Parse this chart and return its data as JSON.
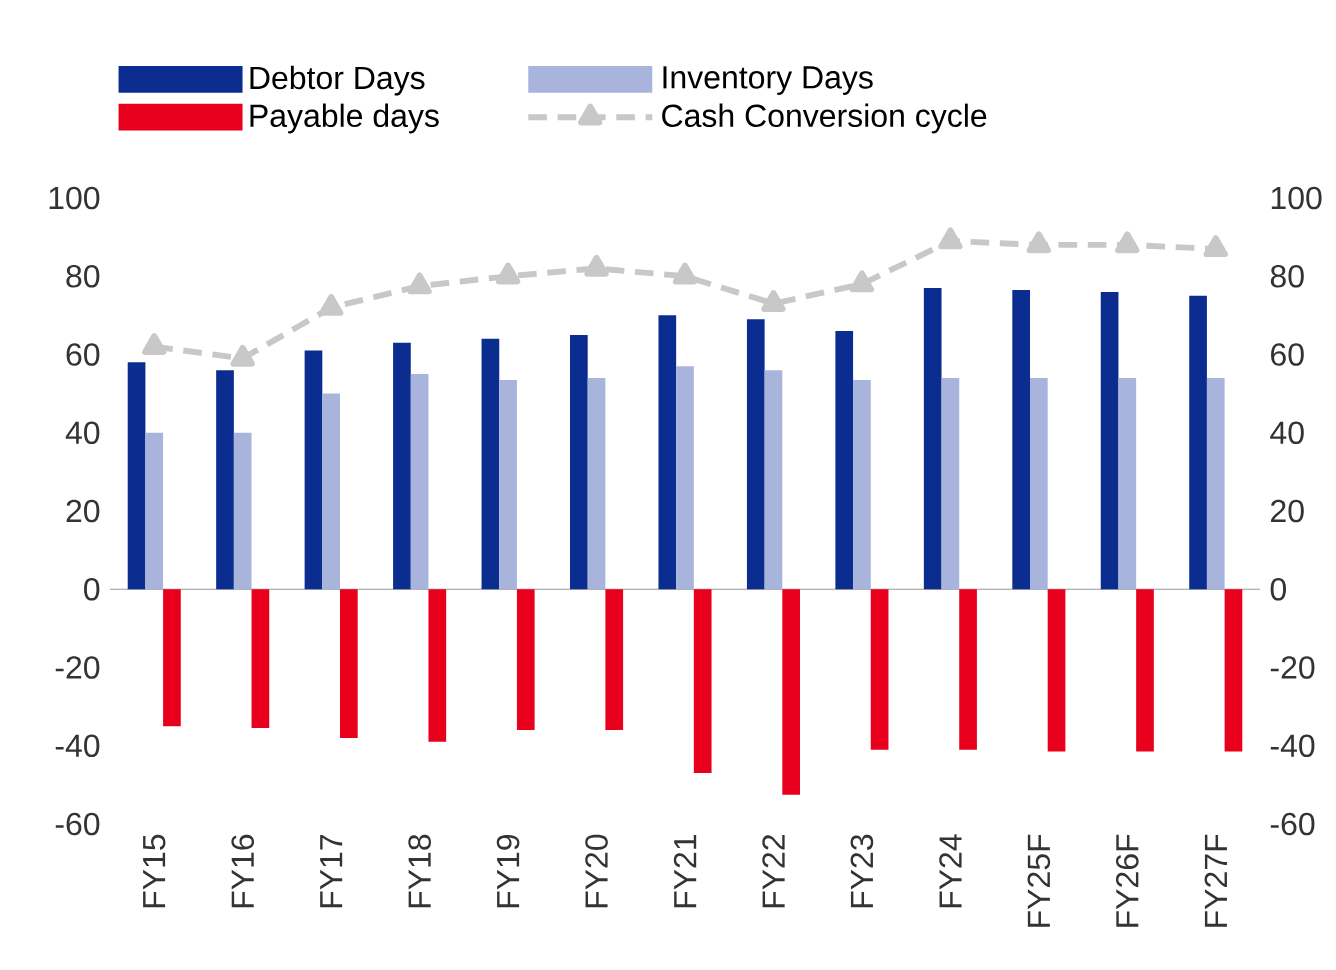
{
  "chart_data": {
    "type": "bar",
    "categories": [
      "FY15",
      "FY16",
      "FY17",
      "FY18",
      "FY19",
      "FY20",
      "FY21",
      "FY22",
      "FY23",
      "FY24",
      "FY25F",
      "FY26F",
      "FY27F"
    ],
    "series": [
      {
        "name": "Debtor Days",
        "color": "#0a2d8f",
        "values": [
          58,
          56,
          61,
          63,
          64,
          65,
          70,
          69,
          66,
          77,
          76.5,
          76,
          75
        ]
      },
      {
        "name": "Inventory Days",
        "color": "#a9b4dc",
        "values": [
          40,
          40,
          50,
          55,
          53.5,
          54,
          57,
          56,
          53.5,
          54,
          54,
          54,
          54
        ]
      },
      {
        "name": "Payable days",
        "color": "#e8001c",
        "values": [
          -35,
          -35.5,
          -38,
          -39,
          -36,
          -36,
          -47,
          -52.5,
          -41,
          -41,
          -41.5,
          -41.5,
          -41.5
        ]
      },
      {
        "name": "Cash Conversion cycle",
        "type": "line",
        "color": "#c8c8c8",
        "marker": "triangle",
        "line_style": "dashed",
        "values": [
          62,
          59,
          72,
          77.5,
          80,
          82,
          80,
          73,
          78,
          89,
          88,
          88,
          87
        ]
      }
    ],
    "ylim": [
      -60,
      100
    ],
    "yticks": [
      -60,
      -40,
      -20,
      0,
      20,
      40,
      60,
      80,
      100
    ],
    "y2lim": [
      -60,
      100
    ],
    "y2ticks": [
      -60,
      -40,
      -20,
      0,
      20,
      40,
      60,
      80,
      100
    ],
    "legend": "top"
  }
}
